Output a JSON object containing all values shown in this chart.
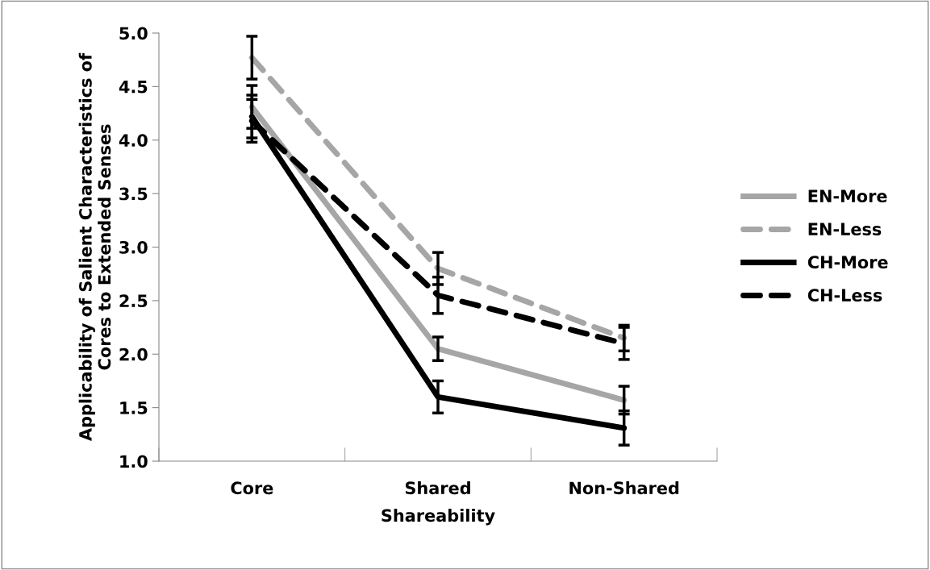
{
  "chart_data": {
    "type": "line",
    "xlabel": "Shareability",
    "ylabel": "Applicability of Salient Characteristics of\nCores to Extended Senses",
    "categories": [
      "Core",
      "Shared",
      "Non-Shared"
    ],
    "ylim": [
      1.0,
      5.0
    ],
    "yticks": [
      {
        "value": 1.0,
        "label": "1.0"
      },
      {
        "value": 1.5,
        "label": "1.5"
      },
      {
        "value": 2.0,
        "label": "2.0"
      },
      {
        "value": 2.5,
        "label": "2.5"
      },
      {
        "value": 3.0,
        "label": "3.0"
      },
      {
        "value": 3.5,
        "label": "3.5"
      },
      {
        "value": 4.0,
        "label": "4.0"
      },
      {
        "value": 4.5,
        "label": "4.5"
      },
      {
        "value": 5.0,
        "label": "5.0"
      }
    ],
    "grid": false,
    "legend": "right",
    "marker": "none",
    "series": [
      {
        "name": "EN-More",
        "color": "#a6a6a6",
        "line_style": "solid",
        "values": [
          4.31,
          2.05,
          1.57
        ],
        "errors": [
          0.2,
          0.11,
          0.13
        ]
      },
      {
        "name": "EN-Less",
        "color": "#a6a6a6",
        "line_style": "dashed",
        "values": [
          4.77,
          2.8,
          2.15
        ],
        "errors": [
          0.2,
          0.15,
          0.12
        ]
      },
      {
        "name": "CH-More",
        "color": "#000000",
        "line_style": "solid",
        "values": [
          4.22,
          1.6,
          1.31
        ],
        "errors": [
          0.2,
          0.15,
          0.16
        ]
      },
      {
        "name": "CH-Less",
        "color": "#000000",
        "line_style": "dashed",
        "values": [
          4.18,
          2.55,
          2.1
        ],
        "errors": [
          0.2,
          0.17,
          0.15
        ]
      }
    ]
  }
}
